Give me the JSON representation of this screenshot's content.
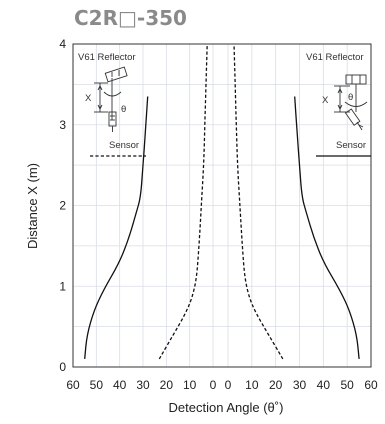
{
  "title": "C2R□-350",
  "chart_data": {
    "type": "line",
    "title": "C2R□-350",
    "xlabel": "Detection Angle (θ˚)",
    "ylabel": "Distance X (m)",
    "xlim": [
      -60,
      60
    ],
    "ylim": [
      0,
      4
    ],
    "x_tick_labels": [
      "60",
      "50",
      "40",
      "30",
      "20",
      "10",
      "0",
      "0",
      "10",
      "20",
      "30",
      "40",
      "50",
      "60"
    ],
    "y_tick_labels": [
      "0",
      "1",
      "2",
      "3",
      "4"
    ],
    "grid": true,
    "series": [
      {
        "style": "solid",
        "points": [
          [
            -55,
            0.1
          ],
          [
            -54,
            0.4
          ],
          [
            -51,
            0.7
          ],
          [
            -47,
            0.95
          ],
          [
            -40,
            1.3
          ],
          [
            -36,
            1.6
          ],
          [
            -33,
            1.9
          ],
          [
            -31,
            2.1
          ],
          [
            -30,
            2.5
          ],
          [
            -29,
            2.9
          ],
          [
            -28,
            3.35
          ]
        ]
      },
      {
        "style": "solid",
        "points": [
          [
            55,
            0.1
          ],
          [
            54,
            0.4
          ],
          [
            51,
            0.7
          ],
          [
            47,
            0.95
          ],
          [
            40,
            1.3
          ],
          [
            36,
            1.6
          ],
          [
            33,
            1.9
          ],
          [
            31,
            2.1
          ],
          [
            30,
            2.5
          ],
          [
            29,
            2.9
          ],
          [
            28,
            3.35
          ]
        ]
      },
      {
        "style": "dashed",
        "points": [
          [
            -23,
            0.1
          ],
          [
            -17,
            0.4
          ],
          [
            -12,
            0.65
          ],
          [
            -9,
            0.85
          ],
          [
            -7,
            1.1
          ],
          [
            -6,
            1.5
          ],
          [
            -5,
            2.0
          ],
          [
            -4,
            2.5
          ],
          [
            -3.5,
            3.0
          ],
          [
            -3,
            3.5
          ],
          [
            -2.5,
            4.0
          ]
        ]
      },
      {
        "style": "dashed",
        "points": [
          [
            23,
            0.1
          ],
          [
            17,
            0.4
          ],
          [
            12,
            0.65
          ],
          [
            9,
            0.85
          ],
          [
            7,
            1.1
          ],
          [
            6,
            1.5
          ],
          [
            5,
            2.0
          ],
          [
            4,
            2.5
          ],
          [
            3.5,
            3.0
          ],
          [
            3,
            3.5
          ],
          [
            2.5,
            4.0
          ]
        ]
      }
    ],
    "insets": [
      {
        "position": "top-left",
        "title": "V61 Reflector",
        "x_label": "X",
        "angle_label": "θ",
        "legend_label": "Sensor",
        "legend_style": "dashed"
      },
      {
        "position": "top-right",
        "title": "V61 Reflector",
        "x_label": "X",
        "angle_label": "θ",
        "legend_label": "Sensor",
        "legend_style": "solid"
      }
    ]
  }
}
